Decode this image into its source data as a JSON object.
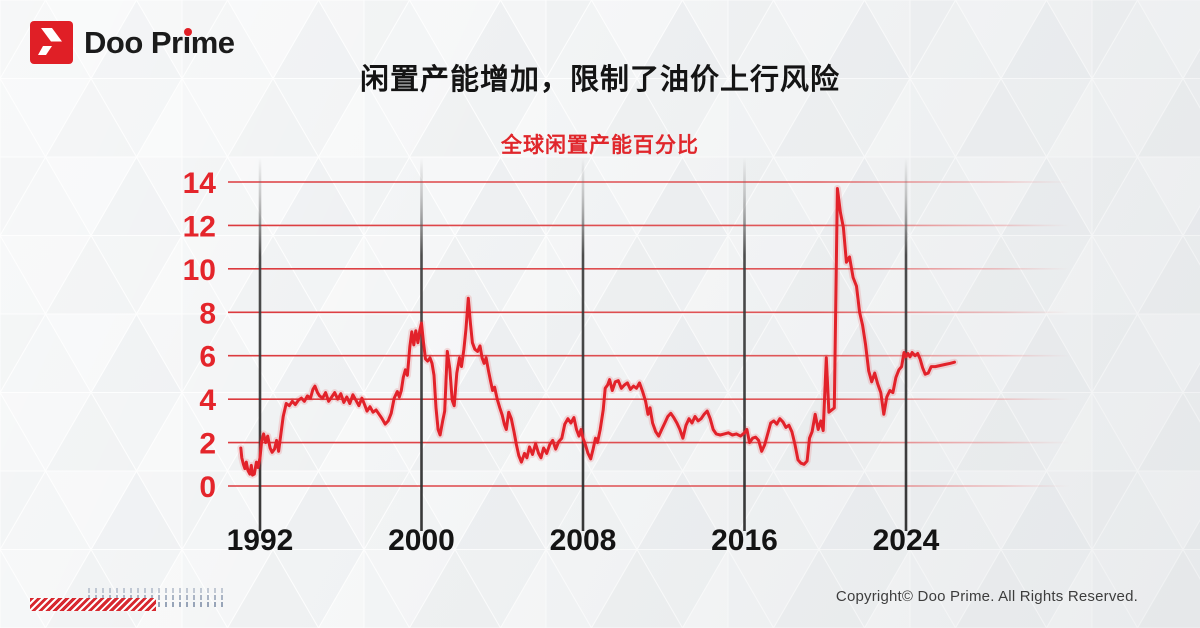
{
  "header": {
    "logo_text": "Doo Prime"
  },
  "title": "闲置产能增加，限制了油价上行风险",
  "footer": {
    "copyright": "Copyright© Doo Prime. All Rights Reserved."
  },
  "colors": {
    "brand_red": "#e01f26",
    "line_red": "#e2222a",
    "grid_red": "#dc3a3e",
    "tick_label_red": "#e4252b",
    "axis_label_black": "#141414",
    "vline_gray": "#3a3a3a"
  },
  "chart_data": {
    "type": "line",
    "title": "全球闲置产能百分比",
    "xlabel": "",
    "ylabel": "",
    "ylim": [
      0,
      14
    ],
    "xlim": [
      1990.4,
      2027
    ],
    "y_ticks": [
      0,
      2,
      4,
      6,
      8,
      10,
      12,
      14
    ],
    "x_ticks": [
      1992,
      2000,
      2008,
      2016,
      2024
    ],
    "grid": "horizontal red lines at every y tick, vertical dark lines at year ticks",
    "legend": "none",
    "series": [
      {
        "name": "全球闲置产能百分比",
        "color": "#e2222a",
        "points": [
          [
            1991.05,
            1.75
          ],
          [
            1991.1,
            1.3
          ],
          [
            1991.18,
            1.0
          ],
          [
            1991.25,
            0.8
          ],
          [
            1991.32,
            1.1
          ],
          [
            1991.4,
            0.72
          ],
          [
            1991.5,
            0.55
          ],
          [
            1991.57,
            0.95
          ],
          [
            1991.63,
            0.5
          ],
          [
            1991.72,
            0.55
          ],
          [
            1991.82,
            1.1
          ],
          [
            1991.9,
            0.85
          ],
          [
            1992.0,
            1.3
          ],
          [
            1992.08,
            2.05
          ],
          [
            1992.18,
            2.4
          ],
          [
            1992.28,
            2.0
          ],
          [
            1992.38,
            2.3
          ],
          [
            1992.5,
            1.75
          ],
          [
            1992.6,
            1.55
          ],
          [
            1992.72,
            1.7
          ],
          [
            1992.82,
            2.1
          ],
          [
            1992.92,
            1.6
          ],
          [
            1993.05,
            2.5
          ],
          [
            1993.15,
            3.2
          ],
          [
            1993.3,
            3.8
          ],
          [
            1993.45,
            3.7
          ],
          [
            1993.6,
            3.9
          ],
          [
            1993.75,
            3.75
          ],
          [
            1993.9,
            3.95
          ],
          [
            1994.05,
            4.05
          ],
          [
            1994.2,
            3.9
          ],
          [
            1994.35,
            4.15
          ],
          [
            1994.5,
            4.05
          ],
          [
            1994.62,
            4.45
          ],
          [
            1994.72,
            4.6
          ],
          [
            1994.85,
            4.3
          ],
          [
            1994.95,
            4.15
          ],
          [
            1995.1,
            4.05
          ],
          [
            1995.25,
            4.3
          ],
          [
            1995.4,
            3.9
          ],
          [
            1995.55,
            4.1
          ],
          [
            1995.7,
            4.3
          ],
          [
            1995.85,
            4.0
          ],
          [
            1996.0,
            4.25
          ],
          [
            1996.15,
            3.85
          ],
          [
            1996.3,
            4.1
          ],
          [
            1996.45,
            3.8
          ],
          [
            1996.6,
            4.2
          ],
          [
            1996.75,
            3.95
          ],
          [
            1996.9,
            3.7
          ],
          [
            1997.05,
            4.05
          ],
          [
            1997.2,
            3.7
          ],
          [
            1997.3,
            3.45
          ],
          [
            1997.45,
            3.65
          ],
          [
            1997.6,
            3.4
          ],
          [
            1997.75,
            3.5
          ],
          [
            1997.9,
            3.3
          ],
          [
            1998.05,
            3.1
          ],
          [
            1998.2,
            2.85
          ],
          [
            1998.35,
            3.0
          ],
          [
            1998.5,
            3.35
          ],
          [
            1998.65,
            4.05
          ],
          [
            1998.8,
            4.35
          ],
          [
            1998.9,
            4.1
          ],
          [
            1999.0,
            4.4
          ],
          [
            1999.1,
            5.0
          ],
          [
            1999.2,
            5.35
          ],
          [
            1999.3,
            5.1
          ],
          [
            1999.42,
            6.4
          ],
          [
            1999.52,
            7.1
          ],
          [
            1999.62,
            6.5
          ],
          [
            1999.72,
            7.15
          ],
          [
            1999.82,
            6.6
          ],
          [
            1999.92,
            7.2
          ],
          [
            2000.0,
            7.5
          ],
          [
            2000.1,
            6.6
          ],
          [
            2000.2,
            5.85
          ],
          [
            2000.3,
            5.75
          ],
          [
            2000.42,
            5.9
          ],
          [
            2000.52,
            5.65
          ],
          [
            2000.62,
            5.1
          ],
          [
            2000.72,
            3.6
          ],
          [
            2000.82,
            2.6
          ],
          [
            2000.92,
            2.35
          ],
          [
            2001.05,
            3.0
          ],
          [
            2001.15,
            3.45
          ],
          [
            2001.28,
            6.2
          ],
          [
            2001.4,
            5.4
          ],
          [
            2001.52,
            3.95
          ],
          [
            2001.62,
            3.7
          ],
          [
            2001.75,
            5.2
          ],
          [
            2001.88,
            5.9
          ],
          [
            2001.98,
            5.5
          ],
          [
            2002.1,
            6.3
          ],
          [
            2002.2,
            7.2
          ],
          [
            2002.32,
            8.65
          ],
          [
            2002.42,
            7.5
          ],
          [
            2002.52,
            6.6
          ],
          [
            2002.64,
            6.3
          ],
          [
            2002.78,
            6.2
          ],
          [
            2002.9,
            6.45
          ],
          [
            2003.0,
            5.9
          ],
          [
            2003.1,
            5.65
          ],
          [
            2003.2,
            5.9
          ],
          [
            2003.32,
            5.3
          ],
          [
            2003.42,
            4.85
          ],
          [
            2003.52,
            4.4
          ],
          [
            2003.62,
            4.55
          ],
          [
            2003.75,
            4.0
          ],
          [
            2003.88,
            3.6
          ],
          [
            2004.0,
            3.25
          ],
          [
            2004.1,
            2.85
          ],
          [
            2004.2,
            2.6
          ],
          [
            2004.32,
            3.4
          ],
          [
            2004.45,
            3.1
          ],
          [
            2004.58,
            2.5
          ],
          [
            2004.7,
            1.9
          ],
          [
            2004.82,
            1.4
          ],
          [
            2004.95,
            1.1
          ],
          [
            2005.1,
            1.5
          ],
          [
            2005.22,
            1.3
          ],
          [
            2005.35,
            1.8
          ],
          [
            2005.5,
            1.45
          ],
          [
            2005.65,
            1.95
          ],
          [
            2005.8,
            1.5
          ],
          [
            2005.92,
            1.3
          ],
          [
            2006.05,
            1.75
          ],
          [
            2006.2,
            1.5
          ],
          [
            2006.35,
            1.9
          ],
          [
            2006.5,
            2.1
          ],
          [
            2006.65,
            1.7
          ],
          [
            2006.8,
            2.05
          ],
          [
            2006.95,
            2.2
          ],
          [
            2007.1,
            2.85
          ],
          [
            2007.25,
            3.1
          ],
          [
            2007.4,
            2.9
          ],
          [
            2007.55,
            3.15
          ],
          [
            2007.68,
            2.6
          ],
          [
            2007.8,
            2.3
          ],
          [
            2007.9,
            2.6
          ],
          [
            2008.0,
            2.2
          ],
          [
            2008.12,
            1.9
          ],
          [
            2008.25,
            1.5
          ],
          [
            2008.38,
            1.25
          ],
          [
            2008.5,
            1.7
          ],
          [
            2008.62,
            2.2
          ],
          [
            2008.72,
            2.0
          ],
          [
            2008.85,
            2.6
          ],
          [
            2009.0,
            3.5
          ],
          [
            2009.1,
            4.5
          ],
          [
            2009.22,
            4.65
          ],
          [
            2009.32,
            4.9
          ],
          [
            2009.45,
            4.4
          ],
          [
            2009.6,
            4.8
          ],
          [
            2009.75,
            4.85
          ],
          [
            2009.9,
            4.5
          ],
          [
            2010.05,
            4.65
          ],
          [
            2010.2,
            4.75
          ],
          [
            2010.35,
            4.45
          ],
          [
            2010.5,
            4.6
          ],
          [
            2010.65,
            4.5
          ],
          [
            2010.8,
            4.75
          ],
          [
            2010.95,
            4.35
          ],
          [
            2011.1,
            3.9
          ],
          [
            2011.22,
            3.3
          ],
          [
            2011.32,
            3.6
          ],
          [
            2011.45,
            2.9
          ],
          [
            2011.6,
            2.5
          ],
          [
            2011.75,
            2.3
          ],
          [
            2011.9,
            2.6
          ],
          [
            2012.05,
            2.9
          ],
          [
            2012.2,
            3.2
          ],
          [
            2012.35,
            3.35
          ],
          [
            2012.5,
            3.15
          ],
          [
            2012.65,
            2.9
          ],
          [
            2012.8,
            2.6
          ],
          [
            2012.95,
            2.2
          ],
          [
            2013.1,
            2.8
          ],
          [
            2013.25,
            3.1
          ],
          [
            2013.4,
            2.9
          ],
          [
            2013.55,
            3.2
          ],
          [
            2013.7,
            3.0
          ],
          [
            2013.85,
            3.1
          ],
          [
            2014.0,
            3.3
          ],
          [
            2014.15,
            3.45
          ],
          [
            2014.3,
            3.1
          ],
          [
            2014.45,
            2.6
          ],
          [
            2014.6,
            2.4
          ],
          [
            2014.8,
            2.35
          ],
          [
            2015.0,
            2.4
          ],
          [
            2015.2,
            2.45
          ],
          [
            2015.4,
            2.35
          ],
          [
            2015.6,
            2.4
          ],
          [
            2015.8,
            2.3
          ],
          [
            2016.0,
            2.45
          ],
          [
            2016.12,
            2.6
          ],
          [
            2016.25,
            2.0
          ],
          [
            2016.4,
            2.2
          ],
          [
            2016.55,
            2.25
          ],
          [
            2016.7,
            2.1
          ],
          [
            2016.85,
            1.6
          ],
          [
            2017.0,
            1.9
          ],
          [
            2017.15,
            2.4
          ],
          [
            2017.3,
            2.9
          ],
          [
            2017.45,
            3.0
          ],
          [
            2017.6,
            2.85
          ],
          [
            2017.75,
            3.1
          ],
          [
            2017.9,
            2.95
          ],
          [
            2018.05,
            2.7
          ],
          [
            2018.2,
            2.8
          ],
          [
            2018.35,
            2.5
          ],
          [
            2018.5,
            1.9
          ],
          [
            2018.65,
            1.2
          ],
          [
            2018.8,
            1.05
          ],
          [
            2018.95,
            1.0
          ],
          [
            2019.1,
            1.15
          ],
          [
            2019.22,
            2.2
          ],
          [
            2019.35,
            2.5
          ],
          [
            2019.5,
            3.3
          ],
          [
            2019.65,
            2.6
          ],
          [
            2019.78,
            3.0
          ],
          [
            2019.9,
            2.55
          ],
          [
            2020.05,
            5.9
          ],
          [
            2020.18,
            3.4
          ],
          [
            2020.32,
            3.5
          ],
          [
            2020.45,
            3.6
          ],
          [
            2020.6,
            13.7
          ],
          [
            2020.75,
            12.6
          ],
          [
            2020.9,
            11.9
          ],
          [
            2021.05,
            10.3
          ],
          [
            2021.2,
            10.55
          ],
          [
            2021.38,
            9.6
          ],
          [
            2021.55,
            9.2
          ],
          [
            2021.7,
            8.0
          ],
          [
            2021.85,
            7.4
          ],
          [
            2022.0,
            6.5
          ],
          [
            2022.15,
            5.3
          ],
          [
            2022.3,
            4.8
          ],
          [
            2022.45,
            5.2
          ],
          [
            2022.6,
            4.7
          ],
          [
            2022.75,
            4.3
          ],
          [
            2022.9,
            3.3
          ],
          [
            2023.05,
            4.1
          ],
          [
            2023.2,
            4.4
          ],
          [
            2023.35,
            4.3
          ],
          [
            2023.5,
            5.0
          ],
          [
            2023.65,
            5.35
          ],
          [
            2023.78,
            5.5
          ],
          [
            2023.9,
            6.15
          ],
          [
            2024.0,
            5.95
          ],
          [
            2024.1,
            6.1
          ],
          [
            2024.2,
            5.95
          ],
          [
            2024.3,
            6.15
          ],
          [
            2024.45,
            6.0
          ],
          [
            2024.58,
            6.1
          ],
          [
            2024.7,
            5.85
          ],
          [
            2024.82,
            5.45
          ],
          [
            2024.95,
            5.15
          ],
          [
            2025.1,
            5.2
          ],
          [
            2025.25,
            5.5
          ],
          [
            2025.45,
            5.5
          ],
          [
            2025.7,
            5.55
          ],
          [
            2025.95,
            5.6
          ],
          [
            2026.2,
            5.65
          ],
          [
            2026.4,
            5.7
          ]
        ]
      }
    ]
  }
}
